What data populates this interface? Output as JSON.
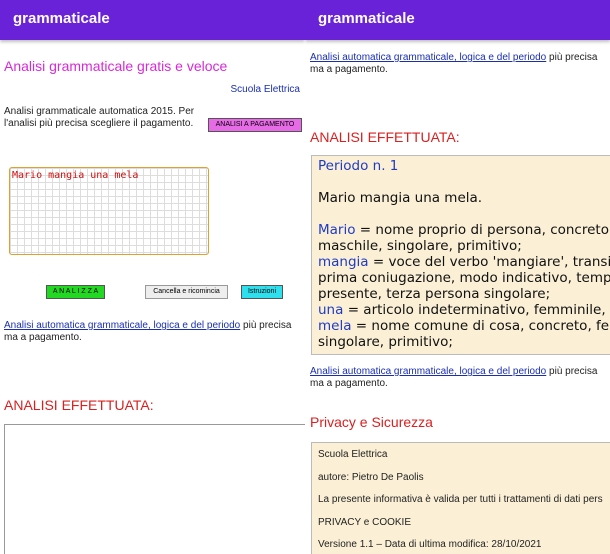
{
  "left": {
    "header": {
      "title": "grammaticale"
    },
    "heading": "Analisi grammaticale gratis e veloce",
    "site_link": "Scuola Elettrica",
    "intro": "Analisi grammaticale automatica 2015. Per l'analisi più precisa scegliere il pagamento.",
    "paid_button": "ANALISI A PAGAMENTO",
    "input_text": "Mario mangia una mela",
    "buttons": [
      "A N A L I Z Z A",
      "Cancella e ricomincia",
      "Istruzioni"
    ],
    "promo": {
      "link": "Analisi automatica grammaticale, logica e del periodo",
      "text": "più precisa ma a pagamento."
    },
    "result_heading": "ANALISI EFFETTUATA:"
  },
  "right": {
    "header": {
      "title": "grammaticale"
    },
    "promo_top": {
      "link": "Analisi automatica grammaticale, logica e del periodo",
      "text": "più precisa ma a pagamento."
    },
    "result_heading": "ANALISI EFFETTUATA:",
    "analysis": {
      "period": "Periodo n. 1",
      "sentence": "Mario mangia una mela.",
      "entries": [
        {
          "word": "Mario",
          "lines": [
            "= nome proprio di persona, concreto,",
            "maschile, singolare, primitivo;"
          ]
        },
        {
          "word": "mangia",
          "lines": [
            "= voce del verbo 'mangiare', transitivo, att",
            "prima coniugazione, modo indicativo, tempo",
            "presente, terza persona singolare;"
          ]
        },
        {
          "word": "una",
          "lines": [
            "= articolo indeterminativo, femminile, singola"
          ]
        },
        {
          "word": "mela",
          "lines": [
            "= nome comune di cosa, concreto, femmini",
            "singolare, primitivo;"
          ]
        }
      ]
    },
    "promo_bottom": {
      "link": "Analisi automatica grammaticale, logica e del periodo",
      "text": "più precisa ma a pagamento."
    },
    "privacy_heading": "Privacy e Sicurezza",
    "privacy_lines": [
      "Scuola Elettrica",
      "autore: Pietro De Paolis",
      "La presente informativa è valida per tutti i trattamenti di dati pers",
      "PRIVACY e COOKIE",
      "Versione 1.1 – Data di ultima modifica: 28/10/2021"
    ]
  }
}
